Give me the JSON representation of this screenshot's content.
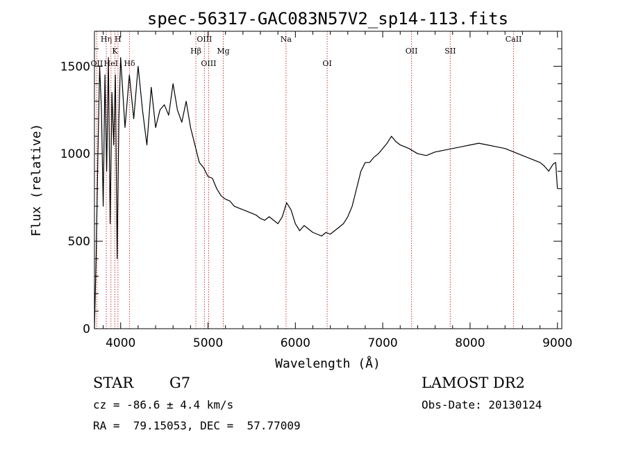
{
  "chart_data": {
    "type": "line",
    "title": "spec-56317-GAC083N57V2_sp14-113.fits",
    "xlabel": "Wavelength (Å)",
    "ylabel": "Flux (relative)",
    "xlim": [
      3700,
      9050
    ],
    "ylim": [
      0,
      1700
    ],
    "xticks": [
      4000,
      5000,
      6000,
      7000,
      8000,
      9000
    ],
    "yticks": [
      0,
      500,
      1000,
      1500
    ],
    "grid": false,
    "series": [
      {
        "x": [
          3700,
          3720,
          3740,
          3760,
          3780,
          3800,
          3820,
          3840,
          3860,
          3880,
          3900,
          3920,
          3940,
          3960,
          3980,
          4000,
          4050,
          4100,
          4150,
          4200,
          4250,
          4300,
          4350,
          4400,
          4450,
          4500,
          4550,
          4600,
          4650,
          4700,
          4750,
          4800,
          4850,
          4900,
          4950,
          5000,
          5050,
          5100,
          5150,
          5200,
          5250,
          5300,
          5350,
          5400,
          5450,
          5500,
          5550,
          5600,
          5650,
          5700,
          5750,
          5800,
          5850,
          5900,
          5950,
          6000,
          6050,
          6100,
          6150,
          6200,
          6250,
          6300,
          6350,
          6400,
          6450,
          6500,
          6550,
          6600,
          6650,
          6700,
          6750,
          6800,
          6850,
          6900,
          6950,
          7000,
          7050,
          7100,
          7150,
          7200,
          7300,
          7400,
          7500,
          7600,
          7700,
          7800,
          7900,
          8000,
          8100,
          8200,
          8300,
          8400,
          8500,
          8600,
          8700,
          8750,
          8800,
          8850,
          8900,
          8950,
          8980,
          9000
        ],
        "values": [
          0,
          420,
          1000,
          1500,
          1250,
          700,
          1450,
          900,
          1550,
          600,
          1350,
          1050,
          1450,
          400,
          1200,
          1550,
          1150,
          1450,
          1200,
          1500,
          1250,
          1050,
          1380,
          1150,
          1250,
          1280,
          1220,
          1400,
          1250,
          1180,
          1300,
          1150,
          1050,
          950,
          920,
          870,
          860,
          800,
          760,
          740,
          730,
          700,
          690,
          680,
          670,
          660,
          650,
          630,
          620,
          640,
          620,
          600,
          640,
          720,
          680,
          600,
          560,
          590,
          570,
          550,
          540,
          530,
          550,
          540,
          560,
          580,
          600,
          640,
          700,
          800,
          900,
          950,
          950,
          980,
          1000,
          1030,
          1060,
          1100,
          1070,
          1050,
          1030,
          1000,
          990,
          1010,
          1020,
          1030,
          1040,
          1050,
          1060,
          1050,
          1040,
          1030,
          1010,
          990,
          970,
          960,
          950,
          930,
          900,
          940,
          950,
          800
        ]
      }
    ],
    "lines": [
      {
        "label": "OII",
        "x": 3727,
        "row": 2
      },
      {
        "label": "Hη",
        "x": 3835,
        "row": 0
      },
      {
        "label": "HeI",
        "x": 3889,
        "row": 2
      },
      {
        "label": "K",
        "x": 3934,
        "row": 1
      },
      {
        "label": "H",
        "x": 3969,
        "row": 0
      },
      {
        "label": "Hδ",
        "x": 4102,
        "row": 2
      },
      {
        "label": "Hβ",
        "x": 4861,
        "row": 1
      },
      {
        "label": "OIII",
        "x": 4959,
        "row": 0
      },
      {
        "label": "OIII",
        "x": 5007,
        "row": 2
      },
      {
        "label": "Mg",
        "x": 5175,
        "row": 1
      },
      {
        "label": "Na",
        "x": 5893,
        "row": 0
      },
      {
        "label": "OI",
        "x": 6364,
        "row": 2
      },
      {
        "label": "OII",
        "x": 7330,
        "row": 1
      },
      {
        "label": "SII",
        "x": 7773,
        "row": 1
      },
      {
        "label": "CaII",
        "x": 8498,
        "row": 0
      }
    ]
  },
  "info": {
    "class_label": "STAR",
    "subclass": "G7",
    "survey": "LAMOST DR2",
    "cz": "cz = -86.6 ± 4.4 km/s",
    "obs_date": "Obs-Date: 20130124",
    "coords": "RA =  79.15053, DEC =  57.77009"
  },
  "colors": {
    "axis": "#000000",
    "line": "#000000",
    "marker": "#cc3333"
  }
}
